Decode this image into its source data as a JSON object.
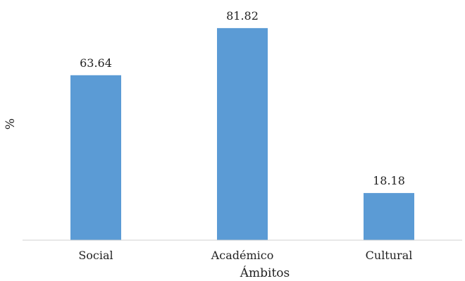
{
  "chart_data": {
    "type": "bar",
    "categories": [
      "Social",
      "Académico",
      "Cultural"
    ],
    "values": [
      63.64,
      81.82,
      18.18
    ],
    "value_labels": [
      "63.64",
      "81.82",
      "18.18"
    ],
    "xlabel": "Ámbitos",
    "ylabel": "%",
    "ylim": [
      0,
      100
    ],
    "grid": false,
    "legend": "none",
    "bar_color": "#5b9bd5"
  }
}
